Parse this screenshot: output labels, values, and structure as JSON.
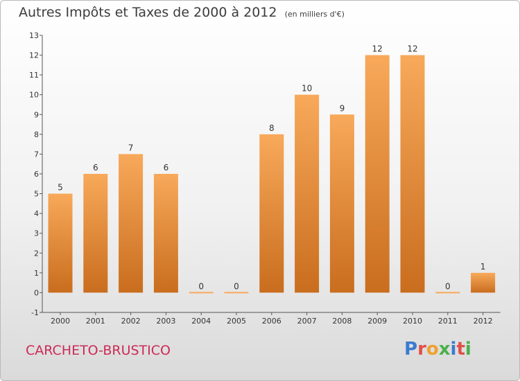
{
  "title": "Autres Impôts et Taxes de 2000 à 2012",
  "unit": "(en milliers d'€)",
  "commune": "CARCHETO-BRUSTICO",
  "logo": {
    "text": "Proxiti",
    "letters": [
      {
        "ch": "P",
        "color": "#3b7bd0"
      },
      {
        "ch": "r",
        "color": "#e0504a"
      },
      {
        "ch": "o",
        "color": "#f0a030"
      },
      {
        "ch": "x",
        "color": "#4bb04b"
      },
      {
        "ch": "i",
        "color": "#3b7bd0"
      },
      {
        "ch": "t",
        "color": "#e0504a"
      },
      {
        "ch": "i",
        "color": "#4bb04b"
      }
    ]
  },
  "colors": {
    "bar_top": "#f8a95a",
    "bar_bottom": "#c96d1e",
    "axis": "#555555"
  },
  "chart_data": {
    "type": "bar",
    "title": "Autres Impôts et Taxes de 2000 à 2012",
    "ylabel": "",
    "xlabel": "",
    "categories": [
      "2000",
      "2001",
      "2002",
      "2003",
      "2004",
      "2005",
      "2006",
      "2007",
      "2008",
      "2009",
      "2010",
      "2011",
      "2012"
    ],
    "values": [
      5,
      6,
      7,
      6,
      0,
      0,
      8,
      10,
      9,
      12,
      12,
      0,
      1
    ],
    "ylim": [
      -1,
      13
    ],
    "yticks": [
      -1,
      0,
      1,
      2,
      3,
      4,
      5,
      6,
      7,
      8,
      9,
      10,
      11,
      12,
      13
    ],
    "grid": false,
    "legend": "none"
  }
}
